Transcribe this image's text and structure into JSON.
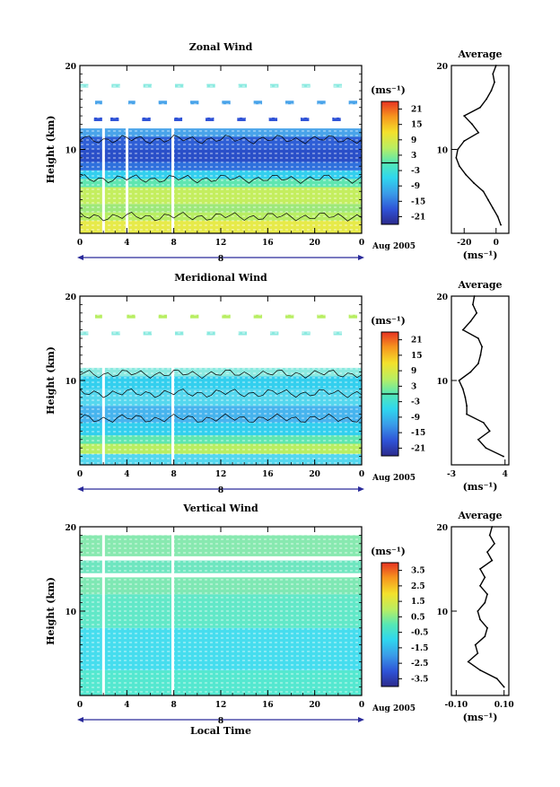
{
  "chart_data": [
    {
      "type": "heatmap",
      "title": "Zonal Wind",
      "ylabel": "Height (km)",
      "x_ticks": [
        "0",
        "4",
        "8",
        "12",
        "16",
        "20",
        "0"
      ],
      "y_ticks": [
        "20",
        "10"
      ],
      "ylim": [
        0,
        20
      ],
      "xlim": [
        0,
        24
      ],
      "date_day": "8",
      "date_month": "Aug 2005",
      "colorbar": {
        "unit": "(ms⁻¹)",
        "ticks": [
          "21",
          "15",
          "9",
          "3",
          "-3",
          "-9",
          "-15",
          "-21"
        ],
        "range": [
          -24,
          24
        ]
      },
      "profile": {
        "title": "Average",
        "x_ticks": [
          "-20",
          "0"
        ],
        "xlim": [
          -28,
          8
        ],
        "unit": "(ms⁻¹)",
        "heights": [
          1,
          2,
          3,
          4,
          5,
          6,
          7,
          8,
          9,
          10,
          11,
          12,
          13,
          14,
          15,
          16,
          17,
          18,
          19,
          20
        ],
        "values": [
          3,
          1,
          -2,
          -5,
          -8,
          -14,
          -19,
          -23,
          -25,
          -24,
          -20,
          -11,
          -15,
          -20,
          -10,
          -6,
          -3,
          -1,
          -2,
          0
        ]
      }
    },
    {
      "type": "heatmap",
      "title": "Meridional Wind",
      "ylabel": "Height (km)",
      "x_ticks": [
        "0",
        "4",
        "8",
        "12",
        "16",
        "20",
        "0"
      ],
      "y_ticks": [
        "20",
        "10"
      ],
      "ylim": [
        0,
        20
      ],
      "xlim": [
        0,
        24
      ],
      "date_day": "8",
      "date_month": "Aug 2005",
      "colorbar": {
        "unit": "(ms⁻¹)",
        "ticks": [
          "21",
          "15",
          "9",
          "3",
          "-3",
          "-9",
          "-15",
          "-21"
        ],
        "range": [
          -24,
          24
        ]
      },
      "profile": {
        "title": "Average",
        "x_ticks": [
          "-3",
          "4"
        ],
        "xlim": [
          -3,
          4.5
        ],
        "unit": "(ms⁻¹)",
        "heights": [
          1,
          2,
          3,
          4,
          5,
          6,
          7,
          8,
          9,
          10,
          11,
          12,
          13,
          14,
          15,
          16,
          17,
          18,
          19,
          20
        ],
        "values": [
          3.8,
          1.5,
          0.5,
          2.0,
          1.2,
          -1.0,
          -1.0,
          -1.2,
          -1.5,
          -2.0,
          -0.5,
          0.5,
          0.8,
          1.0,
          0.5,
          -1.5,
          -0.5,
          0.3,
          -0.2,
          0.0
        ]
      }
    },
    {
      "type": "heatmap",
      "title": "Vertical Wind",
      "ylabel": "Height (km)",
      "xlabel": "Local Time",
      "x_ticks": [
        "0",
        "4",
        "8",
        "12",
        "16",
        "20",
        "0"
      ],
      "y_ticks": [
        "20",
        "10"
      ],
      "ylim": [
        0,
        20
      ],
      "xlim": [
        0,
        24
      ],
      "date_day": "8",
      "date_month": "Aug 2005",
      "colorbar": {
        "unit": "(ms⁻¹)",
        "ticks": [
          "3.5",
          "2.5",
          "1.5",
          "0.5",
          "-0.5",
          "-1.5",
          "-2.5",
          "-3.5"
        ],
        "range": [
          -4,
          4
        ]
      },
      "profile": {
        "title": "Average",
        "x_ticks": [
          "-0.10",
          "0.10"
        ],
        "xlim": [
          -0.12,
          0.12
        ],
        "unit": "(ms⁻¹)",
        "heights": [
          1,
          2,
          3,
          4,
          5,
          6,
          7,
          8,
          9,
          10,
          11,
          12,
          13,
          14,
          15,
          16,
          17,
          18,
          19,
          20
        ],
        "values": [
          0.1,
          0.07,
          0.0,
          -0.05,
          -0.01,
          -0.02,
          0.02,
          0.03,
          0.0,
          -0.01,
          0.02,
          0.03,
          0.0,
          0.02,
          0.0,
          0.05,
          0.03,
          0.06,
          0.04,
          0.05
        ]
      }
    }
  ]
}
